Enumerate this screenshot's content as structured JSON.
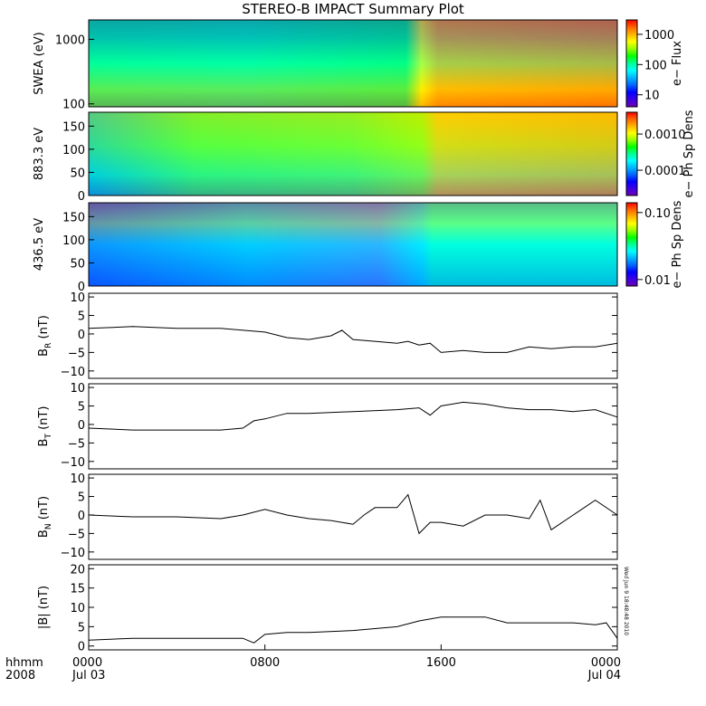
{
  "title": "STEREO-B IMPACT Summary Plot",
  "footer": {
    "axis_label_top": "hhmm",
    "axis_label_bottom": "2008",
    "stamp": "Wed Jun 9 18:48:48 2010"
  },
  "colorscale": [
    "#6a00b4",
    "#3c00e6",
    "#0000ff",
    "#0064ff",
    "#00b4ff",
    "#00ffff",
    "#00ff96",
    "#00ff00",
    "#96ff00",
    "#ffff00",
    "#ffb400",
    "#ff6400",
    "#ff0000"
  ],
  "chart_data": [
    {
      "id": "swea",
      "type": "heatmap",
      "ylabel": "SWEA (eV)",
      "yscale": "log",
      "ylim": [
        90,
        2000
      ],
      "yticks": [
        {
          "v": 1000,
          "label": "1000"
        },
        {
          "v": 100,
          "label": "100"
        }
      ],
      "colorbar": {
        "label": "e− Flux",
        "scale": "log",
        "range": [
          4,
          3000
        ],
        "ticks": [
          {
            "v": 1000,
            "label": "1000"
          },
          {
            "v": 100,
            "label": "100"
          },
          {
            "v": 10,
            "label": "10"
          }
        ]
      }
    },
    {
      "id": "pad883",
      "type": "heatmap",
      "ylabel": "883.3 eV",
      "ylim": [
        0,
        180
      ],
      "yticks": [
        {
          "v": 150,
          "label": "150"
        },
        {
          "v": 100,
          "label": "100"
        },
        {
          "v": 50,
          "label": "50"
        },
        {
          "v": 0,
          "label": "0"
        }
      ],
      "colorbar": {
        "label": "e− Ph Sp Dens",
        "scale": "log",
        "range": [
          2e-05,
          0.004
        ],
        "ticks": [
          {
            "v": 0.001,
            "label": "0.0010"
          },
          {
            "v": 0.0001,
            "label": "0.0001"
          }
        ]
      }
    },
    {
      "id": "pad436",
      "type": "heatmap",
      "ylabel": "436.5 eV",
      "ylim": [
        0,
        180
      ],
      "yticks": [
        {
          "v": 150,
          "label": "150"
        },
        {
          "v": 100,
          "label": "100"
        },
        {
          "v": 50,
          "label": "50"
        },
        {
          "v": 0,
          "label": "0"
        }
      ],
      "colorbar": {
        "label": "e− Ph Sp Dens",
        "scale": "log",
        "range": [
          0.008,
          0.14
        ],
        "ticks": [
          {
            "v": 0.1,
            "label": "0.10"
          },
          {
            "v": 0.01,
            "label": "0.01"
          }
        ]
      }
    },
    {
      "id": "br",
      "type": "line",
      "ylabel": "B",
      "ysub": "R",
      "yunit": " (nT)",
      "ylim": [
        -12,
        11
      ],
      "yticks": [
        {
          "v": 10,
          "label": "10"
        },
        {
          "v": 5,
          "label": "5"
        },
        {
          "v": 0,
          "label": "0"
        },
        {
          "v": -5,
          "label": "−5"
        },
        {
          "v": -10,
          "label": "−10"
        }
      ],
      "x": [
        0,
        2,
        4,
        6,
        8,
        9,
        10,
        11,
        11.5,
        12,
        13,
        14,
        14.5,
        15,
        15.5,
        16,
        17,
        18,
        19,
        20,
        21,
        22,
        23,
        24
      ],
      "y": [
        1.5,
        2,
        1.5,
        1.5,
        0.5,
        -1,
        -1.5,
        -0.5,
        1,
        -1.5,
        -2,
        -2.5,
        -2,
        -3,
        -2.5,
        -5,
        -4.5,
        -5,
        -5,
        -3.5,
        -4,
        -3.5,
        -3.5,
        -2.5
      ]
    },
    {
      "id": "bt",
      "type": "line",
      "ylabel": "B",
      "ysub": "T",
      "yunit": " (nT)",
      "ylim": [
        -12,
        11
      ],
      "yticks": [
        {
          "v": 10,
          "label": "10"
        },
        {
          "v": 5,
          "label": "5"
        },
        {
          "v": 0,
          "label": "0"
        },
        {
          "v": -5,
          "label": "−5"
        },
        {
          "v": -10,
          "label": "−10"
        }
      ],
      "x": [
        0,
        2,
        4,
        6,
        7,
        7.5,
        8,
        9,
        10,
        12,
        14,
        15,
        15.5,
        16,
        17,
        18,
        19,
        20,
        21,
        22,
        23,
        24
      ],
      "y": [
        -1,
        -1.5,
        -1.5,
        -1.5,
        -1,
        1,
        1.5,
        3,
        3,
        3.5,
        4,
        4.5,
        2.5,
        5,
        6,
        5.5,
        4.5,
        4,
        4,
        3.5,
        4,
        2
      ]
    },
    {
      "id": "bn",
      "type": "line",
      "ylabel": "B",
      "ysub": "N",
      "yunit": " (nT)",
      "ylim": [
        -12,
        11
      ],
      "yticks": [
        {
          "v": 10,
          "label": "10"
        },
        {
          "v": 5,
          "label": "5"
        },
        {
          "v": 0,
          "label": "0"
        },
        {
          "v": -5,
          "label": "−5"
        },
        {
          "v": -10,
          "label": "−10"
        }
      ],
      "x": [
        0,
        2,
        4,
        6,
        7,
        8,
        9,
        10,
        11,
        12,
        12.5,
        13,
        14,
        14.5,
        15,
        15.5,
        16,
        17,
        18,
        19,
        20,
        20.5,
        21,
        22,
        23,
        24
      ],
      "y": [
        0,
        -0.5,
        -0.5,
        -1,
        0,
        1.5,
        0,
        -1,
        -1.5,
        -2.5,
        0,
        2,
        2,
        5.5,
        -5,
        -2,
        -2,
        -3,
        0,
        0,
        -1,
        4,
        -4,
        0,
        4,
        0
      ]
    },
    {
      "id": "bmag",
      "type": "line",
      "ylabel": "|B| (nT)",
      "ylim": [
        -1,
        21
      ],
      "yticks": [
        {
          "v": 20,
          "label": "20"
        },
        {
          "v": 15,
          "label": "15"
        },
        {
          "v": 10,
          "label": "10"
        },
        {
          "v": 5,
          "label": "5"
        },
        {
          "v": 0,
          "label": "0"
        }
      ],
      "x": [
        0,
        2,
        4,
        6,
        7,
        7.5,
        8,
        9,
        10,
        12,
        13,
        14,
        15,
        16,
        17,
        18,
        19,
        20,
        21,
        22,
        23,
        23.5,
        24
      ],
      "y": [
        1.5,
        2,
        2,
        2,
        2,
        0.8,
        3,
        3.5,
        3.5,
        4,
        4.5,
        5,
        6.5,
        7.5,
        7.5,
        7.5,
        6,
        6,
        6,
        6,
        5.5,
        6,
        2
      ]
    }
  ],
  "xaxis": {
    "range_hours": [
      0,
      24
    ],
    "ticks": [
      {
        "v": 0,
        "top": "0000",
        "bottom": "Jul 03"
      },
      {
        "v": 8,
        "top": "0800",
        "bottom": ""
      },
      {
        "v": 16,
        "top": "1600",
        "bottom": ""
      },
      {
        "v": 24,
        "top": "0000",
        "bottom": "Jul 04"
      }
    ]
  }
}
